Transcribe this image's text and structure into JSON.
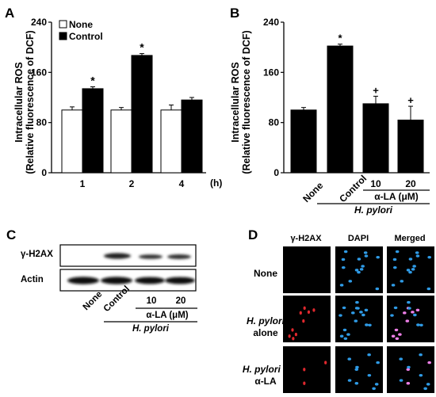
{
  "panels": {
    "A": {
      "letter": "A"
    },
    "B": {
      "letter": "B"
    },
    "C": {
      "letter": "C"
    },
    "D": {
      "letter": "D"
    }
  },
  "chart_data": [
    {
      "type": "bar",
      "panel": "A",
      "ylabel_line1": "Intracellular ROS",
      "ylabel_line2": "(Relative fluorescence of DCF)",
      "yticks": [
        0,
        80,
        160,
        240
      ],
      "ylim": [
        0,
        240
      ],
      "categories": [
        "1",
        "2",
        "4"
      ],
      "x_unit": "(h)",
      "series": [
        {
          "name": "None",
          "fill": "#ffffff",
          "values": [
            100,
            100,
            100
          ],
          "errors": [
            5,
            4,
            8
          ]
        },
        {
          "name": "Control",
          "fill": "#000000",
          "values": [
            134,
            187,
            116
          ],
          "errors": [
            3,
            3,
            4
          ]
        }
      ],
      "annotations": [
        {
          "category": "1",
          "series": "Control",
          "text": "*"
        },
        {
          "category": "2",
          "series": "Control",
          "text": "*"
        }
      ],
      "legend": "top-left"
    },
    {
      "type": "bar",
      "panel": "B",
      "ylabel_line1": "Intracellular ROS",
      "ylabel_line2": "(Relative fluorescence of DCF)",
      "yticks": [
        0,
        80,
        160,
        240
      ],
      "ylim": [
        0,
        240
      ],
      "categories": [
        "None",
        "Control",
        "10",
        "20"
      ],
      "values": [
        100,
        202,
        110,
        84
      ],
      "errors": [
        4,
        3,
        12,
        22
      ],
      "annotations": [
        "",
        "*",
        "+",
        "+"
      ],
      "group_label": "α-LA (μM)",
      "bottom_label": "H. pylori"
    }
  ],
  "blot": {
    "rows": [
      {
        "label": "γ-H2AX"
      },
      {
        "label": "Actin"
      }
    ],
    "lanes": [
      "None",
      "Control",
      "10",
      "20"
    ],
    "group_label": "α-LA (μM)",
    "bottom_label": "H. pylori"
  },
  "microscopy": {
    "columns": [
      "γ-H2AX",
      "DAPI",
      "Merged"
    ],
    "rows": [
      {
        "label_line1": "None",
        "label_line2": ""
      },
      {
        "label_line1": "H. pylori",
        "label_line2": "alone"
      },
      {
        "label_line1": "H. pylori +",
        "label_line2": "α-LA"
      }
    ],
    "colors": {
      "red": "#e0282e",
      "blue": "#2f9be6",
      "magenta": "#ee7fe8"
    }
  }
}
